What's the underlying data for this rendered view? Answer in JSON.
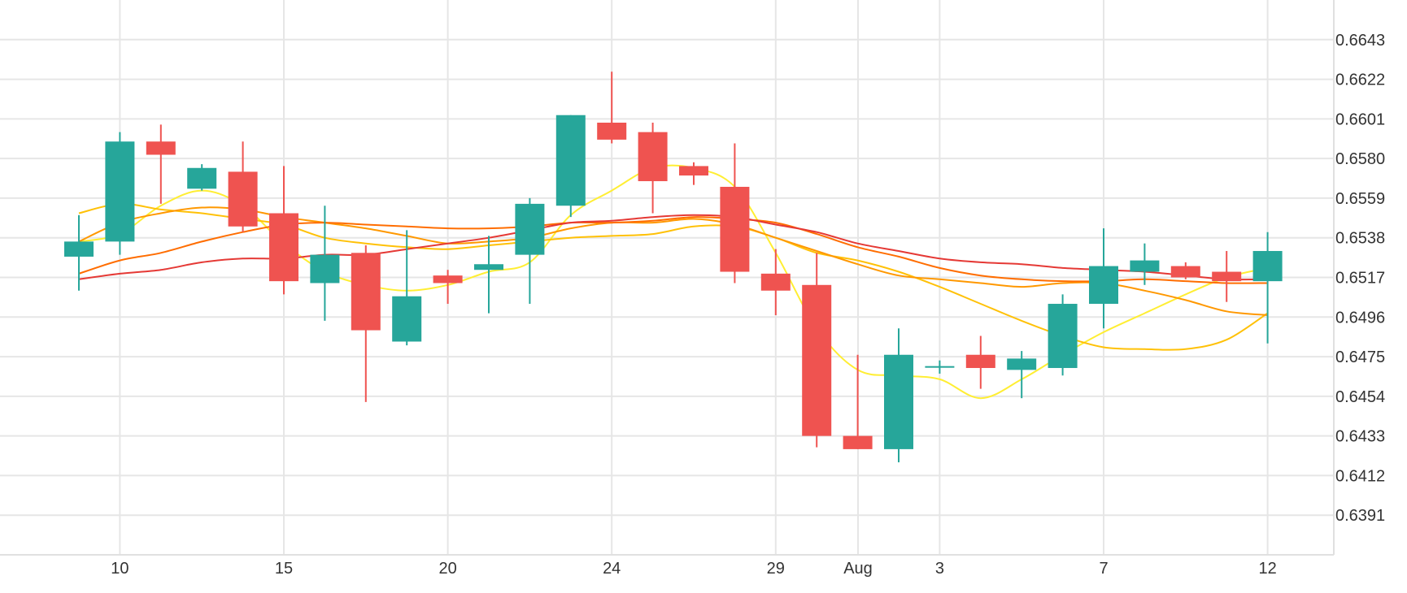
{
  "chart_data": {
    "type": "candlestick",
    "title": "",
    "xlabel": "",
    "ylabel": "",
    "ylim": [
      0.637,
      0.6664
    ],
    "y_ticks": [
      0.6391,
      0.6412,
      0.6433,
      0.6454,
      0.6475,
      0.6496,
      0.6517,
      0.6538,
      0.6559,
      0.658,
      0.6601,
      0.6622,
      0.6643
    ],
    "x_ticks": [
      {
        "label": "10",
        "index": 1
      },
      {
        "label": "15",
        "index": 5
      },
      {
        "label": "20",
        "index": 9
      },
      {
        "label": "24",
        "index": 13
      },
      {
        "label": "29",
        "index": 17
      },
      {
        "label": "Aug",
        "index": 20
      },
      {
        "label": "3",
        "index": 21
      },
      {
        "label": "7",
        "index": 25
      },
      {
        "label": "12",
        "index": 29
      }
    ],
    "colors": {
      "up": "#26a69a",
      "down": "#ef5350"
    },
    "candles": [
      {
        "open": 0.6528,
        "high": 0.655,
        "low": 0.651,
        "close": 0.6536
      },
      {
        "open": 0.6536,
        "high": 0.6594,
        "low": 0.6529,
        "close": 0.6589
      },
      {
        "open": 0.6589,
        "high": 0.6598,
        "low": 0.6556,
        "close": 0.6582
      },
      {
        "open": 0.6564,
        "high": 0.6577,
        "low": 0.6563,
        "close": 0.6575
      },
      {
        "open": 0.6573,
        "high": 0.6589,
        "low": 0.6541,
        "close": 0.6544
      },
      {
        "open": 0.6551,
        "high": 0.6576,
        "low": 0.6508,
        "close": 0.6515
      },
      {
        "open": 0.6514,
        "high": 0.6555,
        "low": 0.6494,
        "close": 0.6529
      },
      {
        "open": 0.653,
        "high": 0.6534,
        "low": 0.6451,
        "close": 0.6489
      },
      {
        "open": 0.6483,
        "high": 0.6542,
        "low": 0.6481,
        "close": 0.6507
      },
      {
        "open": 0.6518,
        "high": 0.6521,
        "low": 0.6503,
        "close": 0.6514
      },
      {
        "open": 0.6521,
        "high": 0.6539,
        "low": 0.6498,
        "close": 0.6524
      },
      {
        "open": 0.6529,
        "high": 0.6559,
        "low": 0.6503,
        "close": 0.6556
      },
      {
        "open": 0.6555,
        "high": 0.6603,
        "low": 0.6549,
        "close": 0.6603
      },
      {
        "open": 0.6599,
        "high": 0.6626,
        "low": 0.6588,
        "close": 0.659
      },
      {
        "open": 0.6594,
        "high": 0.6599,
        "low": 0.6551,
        "close": 0.6568
      },
      {
        "open": 0.6576,
        "high": 0.6578,
        "low": 0.6566,
        "close": 0.6571
      },
      {
        "open": 0.6565,
        "high": 0.6588,
        "low": 0.6514,
        "close": 0.652
      },
      {
        "open": 0.6519,
        "high": 0.6532,
        "low": 0.6497,
        "close": 0.651
      },
      {
        "open": 0.6513,
        "high": 0.653,
        "low": 0.6427,
        "close": 0.6433
      },
      {
        "open": 0.6433,
        "high": 0.6476,
        "low": 0.6426,
        "close": 0.6426
      },
      {
        "open": 0.6426,
        "high": 0.649,
        "low": 0.6419,
        "close": 0.6476
      },
      {
        "open": 0.647,
        "high": 0.6473,
        "low": 0.6466,
        "close": 0.647
      },
      {
        "open": 0.6476,
        "high": 0.6486,
        "low": 0.6458,
        "close": 0.6469
      },
      {
        "open": 0.6468,
        "high": 0.6478,
        "low": 0.6453,
        "close": 0.6474
      },
      {
        "open": 0.6469,
        "high": 0.6508,
        "low": 0.6465,
        "close": 0.6503
      },
      {
        "open": 0.6503,
        "high": 0.6543,
        "low": 0.649,
        "close": 0.6523
      },
      {
        "open": 0.652,
        "high": 0.6535,
        "low": 0.6513,
        "close": 0.6526
      },
      {
        "open": 0.6523,
        "high": 0.6525,
        "low": 0.6516,
        "close": 0.6517
      },
      {
        "open": 0.652,
        "high": 0.6531,
        "low": 0.6504,
        "close": 0.6515
      },
      {
        "open": 0.6515,
        "high": 0.6541,
        "low": 0.6482,
        "close": 0.6531
      }
    ],
    "series": [
      {
        "color": "#ffee33",
        "values": [
          0.6536,
          0.654,
          0.6555,
          0.6563,
          0.6555,
          0.6535,
          0.652,
          0.6513,
          0.651,
          0.6513,
          0.652,
          0.6525,
          0.655,
          0.6563,
          0.6575,
          0.6575,
          0.6565,
          0.653,
          0.649,
          0.6468,
          0.6465,
          0.6463,
          0.6453,
          0.6463,
          0.6476,
          0.6488,
          0.6498,
          0.6508,
          0.6517,
          0.6522
        ]
      },
      {
        "color": "#ffc107",
        "values": [
          0.6551,
          0.6556,
          0.6553,
          0.6551,
          0.6548,
          0.6545,
          0.6538,
          0.6535,
          0.6533,
          0.6532,
          0.6534,
          0.6536,
          0.6538,
          0.6539,
          0.654,
          0.6544,
          0.6544,
          0.6538,
          0.653,
          0.6526,
          0.652,
          0.6512,
          0.6503,
          0.6494,
          0.6486,
          0.648,
          0.6479,
          0.6479,
          0.6484,
          0.6498
        ]
      },
      {
        "color": "#ff9800",
        "values": [
          0.6536,
          0.6546,
          0.6551,
          0.6554,
          0.6553,
          0.6549,
          0.6546,
          0.6543,
          0.6539,
          0.6535,
          0.6536,
          0.6538,
          0.6543,
          0.6546,
          0.6546,
          0.6548,
          0.6545,
          0.6538,
          0.6531,
          0.6524,
          0.6518,
          0.6516,
          0.6514,
          0.6512,
          0.6514,
          0.6514,
          0.651,
          0.6505,
          0.6499,
          0.6497
        ]
      },
      {
        "color": "#ff6d00",
        "values": [
          0.6519,
          0.6526,
          0.653,
          0.6536,
          0.6541,
          0.6545,
          0.6546,
          0.6545,
          0.6544,
          0.6543,
          0.6543,
          0.6544,
          0.6546,
          0.6546,
          0.6547,
          0.6549,
          0.6548,
          0.6546,
          0.654,
          0.6533,
          0.6528,
          0.6522,
          0.6518,
          0.6516,
          0.6515,
          0.6515,
          0.6516,
          0.6515,
          0.6514,
          0.6514
        ]
      },
      {
        "color": "#e53935",
        "values": [
          0.6516,
          0.6519,
          0.6521,
          0.6525,
          0.6527,
          0.6527,
          0.6529,
          0.6529,
          0.6532,
          0.6535,
          0.6538,
          0.6542,
          0.6546,
          0.6547,
          0.6549,
          0.655,
          0.6549,
          0.6545,
          0.6541,
          0.6535,
          0.6531,
          0.6527,
          0.6525,
          0.6524,
          0.6522,
          0.6521,
          0.652,
          0.6518,
          0.6516,
          0.6516
        ]
      }
    ]
  }
}
